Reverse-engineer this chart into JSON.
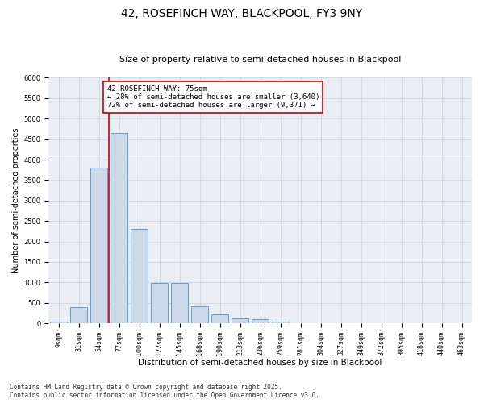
{
  "title1": "42, ROSEFINCH WAY, BLACKPOOL, FY3 9NY",
  "title2": "Size of property relative to semi-detached houses in Blackpool",
  "xlabel": "Distribution of semi-detached houses by size in Blackpool",
  "ylabel": "Number of semi-detached properties",
  "categories": [
    "9sqm",
    "31sqm",
    "54sqm",
    "77sqm",
    "100sqm",
    "122sqm",
    "145sqm",
    "168sqm",
    "190sqm",
    "213sqm",
    "236sqm",
    "259sqm",
    "281sqm",
    "304sqm",
    "327sqm",
    "349sqm",
    "372sqm",
    "395sqm",
    "418sqm",
    "440sqm",
    "463sqm"
  ],
  "values": [
    50,
    390,
    3800,
    4650,
    2300,
    980,
    980,
    420,
    220,
    120,
    110,
    50,
    5,
    0,
    0,
    0,
    0,
    0,
    0,
    0,
    0
  ],
  "bar_color": "#ccd9e8",
  "bar_edge_color": "#6699cc",
  "vline_color": "#cc0000",
  "annotation_text": "42 ROSEFINCH WAY: 75sqm\n← 28% of semi-detached houses are smaller (3,640)\n72% of semi-detached houses are larger (9,371) →",
  "annotation_box_color": "#ffffff",
  "annotation_box_edge": "#cc0000",
  "ylim": [
    0,
    6000
  ],
  "yticks": [
    0,
    500,
    1000,
    1500,
    2000,
    2500,
    3000,
    3500,
    4000,
    4500,
    5000,
    5500,
    6000
  ],
  "grid_color": "#c8d0dc",
  "background_color": "#e8eef4",
  "footnote": "Contains HM Land Registry data © Crown copyright and database right 2025.\nContains public sector information licensed under the Open Government Licence v3.0.",
  "title1_fontsize": 10,
  "title2_fontsize": 8,
  "xlabel_fontsize": 7.5,
  "ylabel_fontsize": 7,
  "tick_fontsize": 6,
  "annotation_fontsize": 6.5,
  "footnote_fontsize": 5.5
}
